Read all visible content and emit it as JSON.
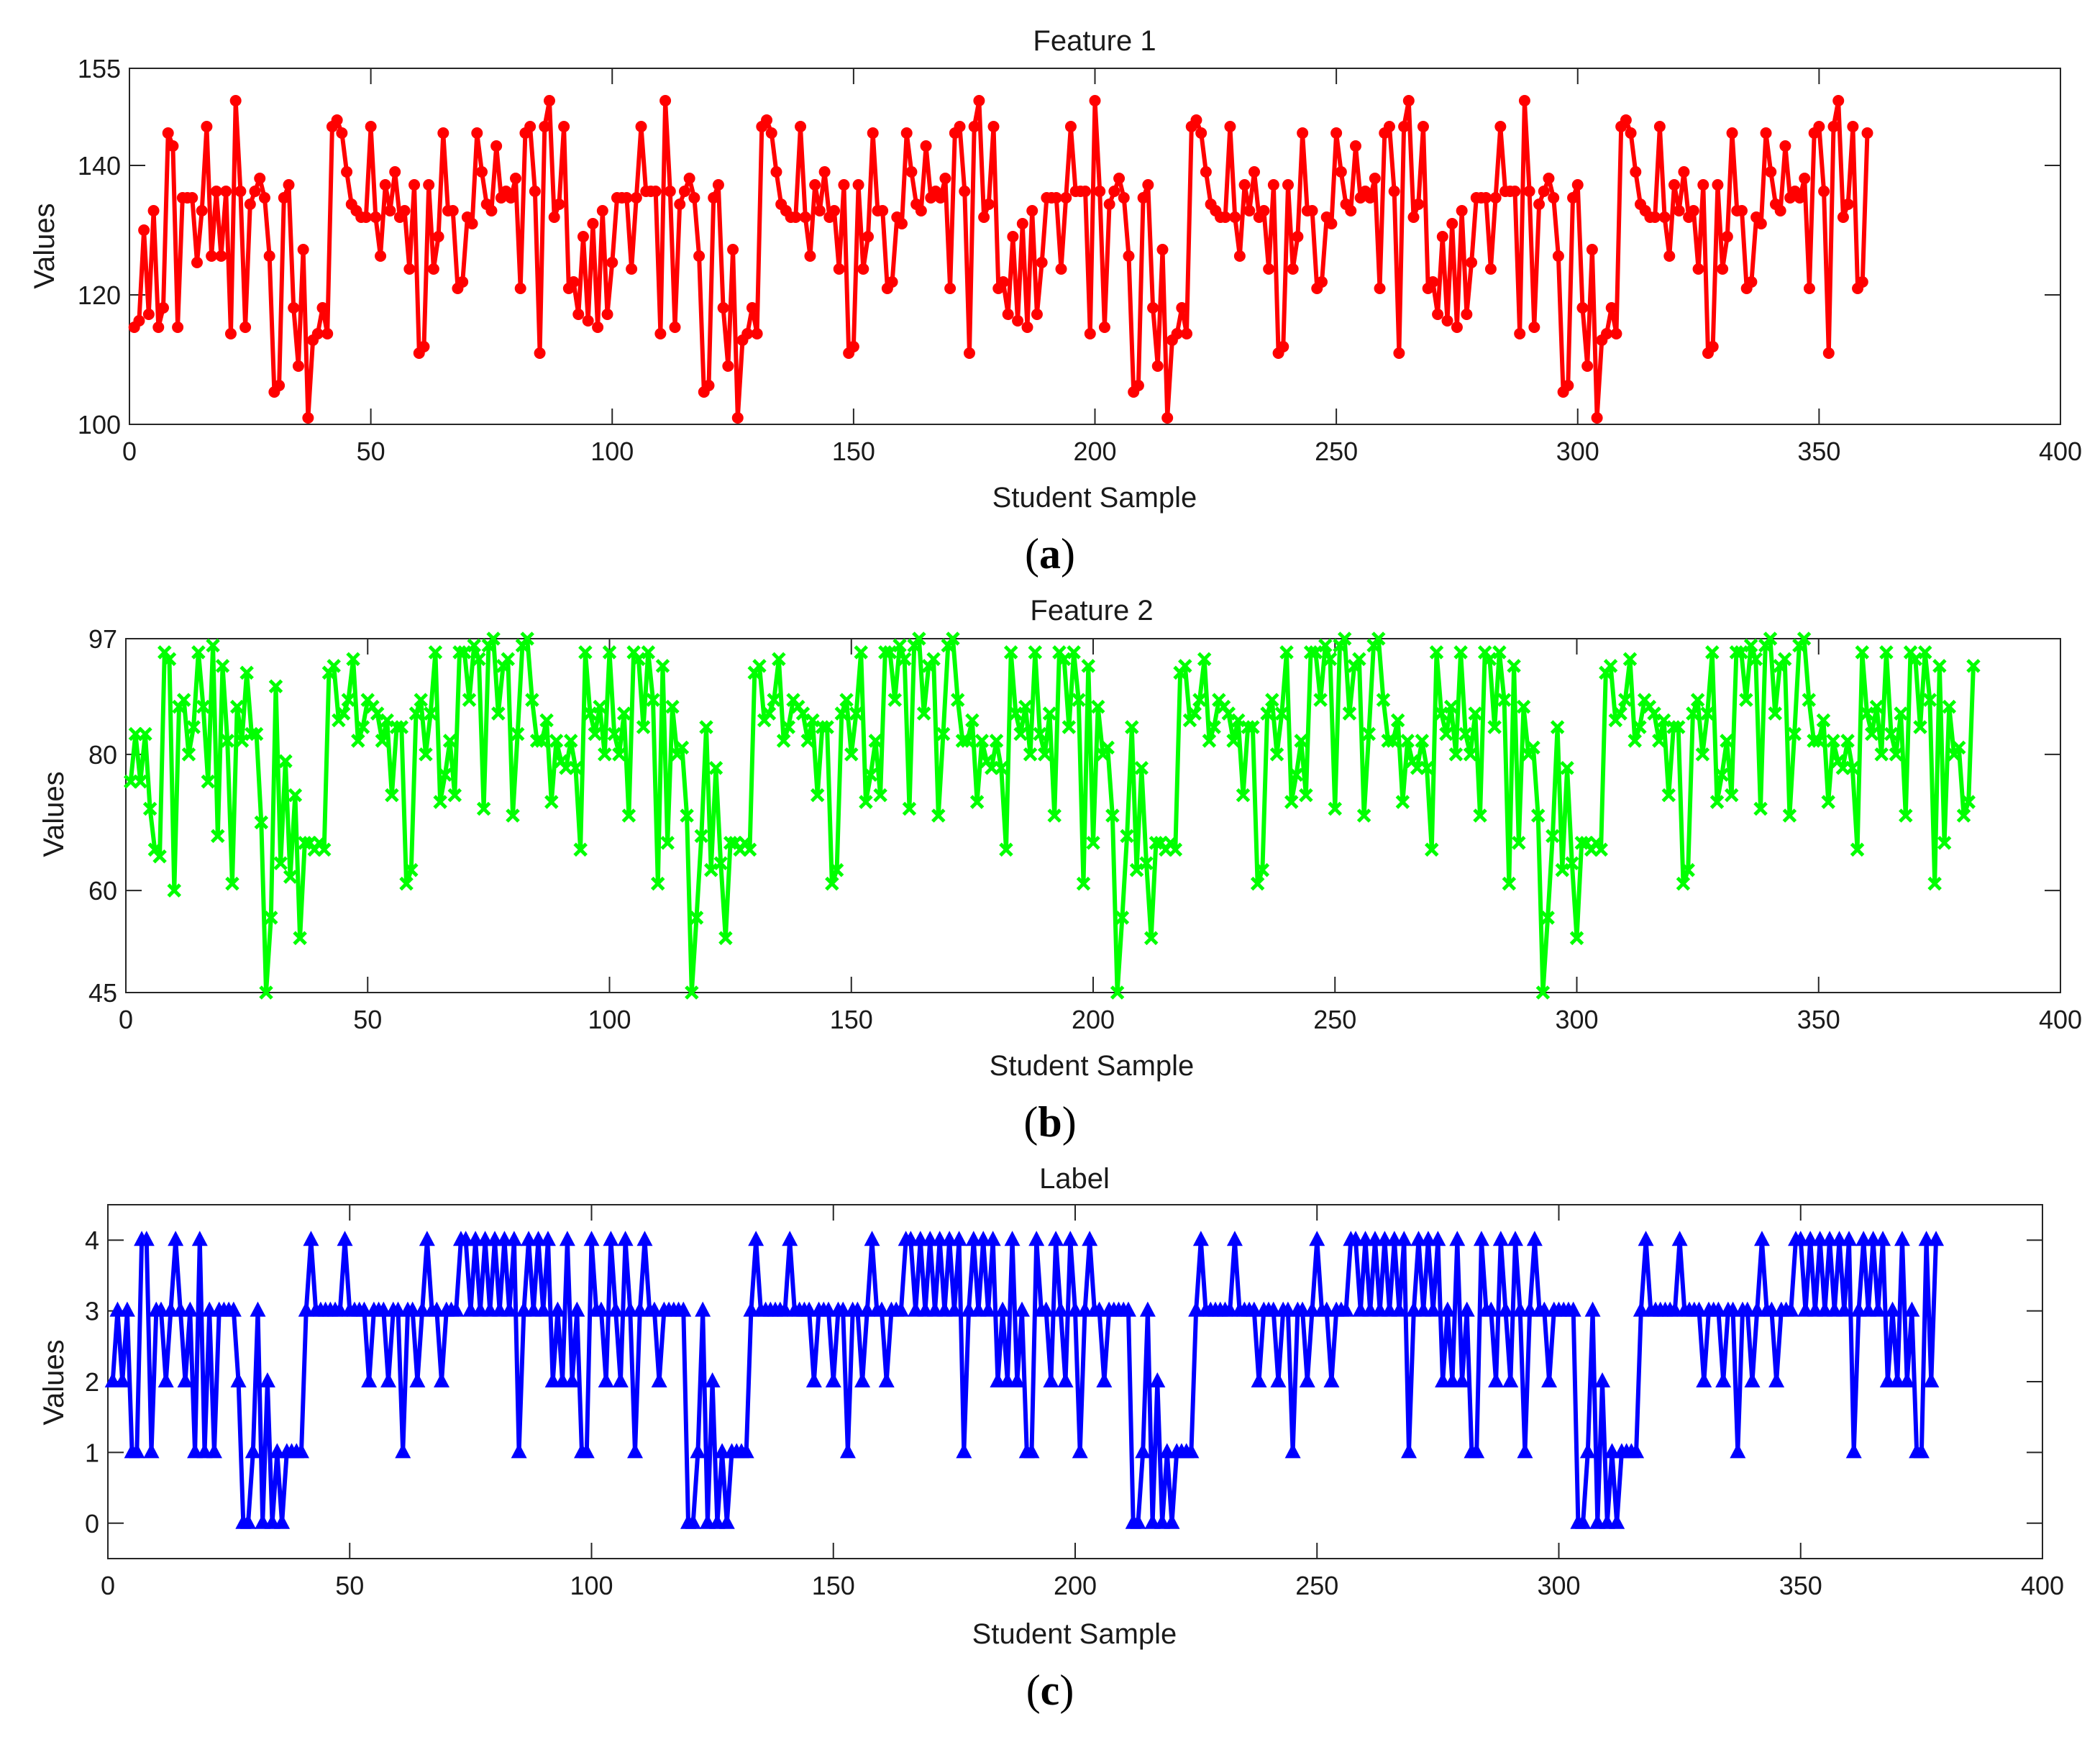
{
  "chart_data": [
    {
      "type": "line",
      "title": "Feature 1",
      "xlabel": "Student Sample",
      "ylabel": "Values",
      "caption_letter": "a",
      "xlim": [
        0,
        400
      ],
      "ylim": [
        100,
        155
      ],
      "xticks": [
        0,
        50,
        100,
        150,
        200,
        250,
        300,
        350,
        400
      ],
      "yticks": [
        100,
        120,
        140,
        155
      ],
      "marker": "circle",
      "color": "#ff0000",
      "series": [
        {
          "name": "Feature 1",
          "x_start": 1,
          "values": [
            115,
            116,
            130,
            117,
            133,
            115,
            118,
            145,
            143,
            115,
            135,
            135,
            135,
            125,
            133,
            146,
            126,
            136,
            126,
            136,
            114,
            150,
            136,
            115,
            134,
            136,
            138,
            135,
            126,
            105,
            106,
            135,
            137,
            118,
            109,
            127,
            101,
            113,
            114,
            118,
            114,
            146,
            147,
            145,
            139,
            134,
            133,
            132,
            132,
            146,
            132,
            126,
            137,
            133,
            139,
            132,
            133,
            124,
            137,
            111,
            112,
            137,
            124,
            129,
            145,
            133,
            133,
            121,
            122,
            132,
            131,
            145,
            139,
            134,
            133,
            143,
            135,
            136,
            135,
            138,
            121,
            145,
            146,
            136,
            111,
            146,
            150,
            132,
            134,
            146,
            121,
            122,
            117,
            129,
            116,
            131,
            115,
            133,
            117,
            125,
            135,
            135,
            135,
            124,
            135,
            146,
            136,
            136,
            136,
            114,
            150,
            136,
            115,
            134,
            136,
            138,
            135,
            126,
            105,
            106,
            135,
            137,
            118,
            109,
            127,
            101,
            113,
            114,
            118,
            114,
            146,
            147,
            145,
            139,
            134,
            133,
            132,
            132,
            146,
            132,
            126,
            137,
            133,
            139,
            132,
            133,
            124,
            137,
            111,
            112,
            137,
            124,
            129,
            145,
            133,
            133,
            121,
            122,
            132,
            131,
            145,
            139,
            134,
            133,
            143,
            135,
            136,
            135,
            138,
            121,
            145,
            146,
            136,
            111,
            146,
            150,
            132,
            134,
            146,
            121,
            122,
            117,
            129,
            116,
            131,
            115,
            133,
            117,
            125,
            135,
            135,
            135,
            124,
            135,
            146,
            136,
            136,
            136,
            114,
            150,
            136,
            115,
            134,
            136,
            138,
            135,
            126,
            105,
            106,
            135,
            137,
            118,
            109,
            127,
            101,
            113,
            114,
            118,
            114,
            146,
            147,
            145,
            139,
            134,
            133,
            132,
            132,
            146,
            132,
            126,
            137,
            133,
            139,
            132,
            133,
            124,
            137,
            111,
            112,
            137,
            124,
            129,
            145,
            133,
            133,
            121,
            122,
            132,
            131,
            145,
            139,
            134,
            133,
            143,
            135,
            136,
            135,
            138,
            121,
            145,
            146,
            136,
            111,
            146,
            150,
            132,
            134,
            146,
            121,
            122,
            117,
            129,
            116,
            131,
            115,
            133,
            117,
            125,
            135,
            135,
            135,
            124,
            135,
            146,
            136,
            136,
            136,
            114,
            150,
            136,
            115,
            134,
            136,
            138,
            135,
            126,
            105,
            106,
            135,
            137,
            118,
            109,
            127,
            101,
            113,
            114,
            118,
            114,
            146,
            147,
            145,
            139,
            134,
            133,
            132,
            132,
            146,
            132,
            126,
            137,
            133,
            139,
            132,
            133,
            124,
            137,
            111,
            112,
            137,
            124,
            129,
            145,
            133,
            133,
            121,
            122,
            132,
            131,
            145,
            139,
            134,
            133,
            143,
            135,
            136,
            135,
            138,
            121,
            145,
            146,
            136,
            111,
            146,
            150,
            132,
            134,
            146,
            121,
            122,
            145
          ]
        }
      ]
    },
    {
      "type": "line",
      "title": "Feature 2",
      "xlabel": "Student Sample",
      "ylabel": "Values",
      "caption_letter": "b",
      "xlim": [
        0,
        400
      ],
      "ylim": [
        45,
        97
      ],
      "xticks": [
        0,
        50,
        100,
        150,
        200,
        250,
        300,
        350,
        400
      ],
      "yticks": [
        45,
        60,
        80,
        97
      ],
      "marker": "x",
      "color": "#00ff00",
      "series": [
        {
          "name": "Feature 2",
          "x_start": 1,
          "values": [
            76,
            83,
            76,
            83,
            72,
            66,
            65,
            95,
            94,
            60,
            87,
            88,
            80,
            84,
            95,
            87,
            76,
            96,
            68,
            93,
            82,
            61,
            87,
            82,
            92,
            83,
            83,
            70,
            45,
            56,
            90,
            64,
            79,
            62,
            74,
            53,
            67,
            67,
            66,
            67,
            66,
            92,
            93,
            85,
            86,
            88,
            94,
            82,
            84,
            88,
            87,
            86,
            82,
            85,
            74,
            84,
            84,
            61,
            63,
            86,
            88,
            80,
            86,
            95,
            73,
            77,
            82,
            74,
            95,
            95,
            88,
            96,
            94,
            72,
            96,
            97,
            86,
            93,
            94,
            71,
            83,
            96,
            97,
            88,
            82,
            82,
            85,
            73,
            82,
            79,
            78,
            82,
            78,
            66,
            95,
            86,
            83,
            87,
            80,
            95,
            83,
            80,
            86,
            71,
            95,
            94,
            84,
            95,
            88,
            61,
            93,
            67,
            87,
            80,
            81,
            71,
            45,
            56,
            68,
            84,
            63,
            78,
            64,
            53,
            67,
            67,
            66,
            67,
            66,
            92,
            93,
            85,
            86,
            88,
            94,
            82,
            84,
            88,
            87,
            86,
            82,
            85,
            74,
            84,
            84,
            61,
            63,
            86,
            88,
            80,
            86,
            95,
            73,
            77,
            82,
            74,
            95,
            95,
            88,
            96,
            94,
            72,
            96,
            97,
            86,
            93,
            94,
            71,
            83,
            96,
            97,
            88,
            82,
            82,
            85,
            73,
            82,
            79,
            78,
            82,
            78,
            66,
            95,
            86,
            83,
            87,
            80,
            95,
            83,
            80,
            86,
            71,
            95,
            94,
            84,
            95,
            88,
            61,
            93,
            67,
            87,
            80,
            81,
            71,
            45,
            56,
            68,
            84,
            63,
            78,
            64,
            53,
            67,
            67,
            66,
            67,
            66,
            92,
            93,
            85,
            86,
            88,
            94,
            82,
            84,
            88,
            87,
            86,
            82,
            85,
            74,
            84,
            84,
            61,
            63,
            86,
            88,
            80,
            86,
            95,
            73,
            77,
            82,
            74,
            95,
            95,
            88,
            96,
            94,
            72,
            96,
            97,
            86,
            93,
            94,
            71,
            83,
            96,
            97,
            88,
            82,
            82,
            85,
            73,
            82,
            79,
            78,
            82,
            78,
            66,
            95,
            86,
            83,
            87,
            80,
            95,
            83,
            80,
            86,
            71,
            95,
            94,
            84,
            95,
            88,
            61,
            93,
            67,
            87,
            80,
            81,
            71,
            45,
            56,
            68,
            84,
            63,
            78,
            64,
            53,
            67,
            67,
            66,
            67,
            66,
            92,
            93,
            85,
            86,
            88,
            94,
            82,
            84,
            88,
            87,
            86,
            82,
            85,
            74,
            84,
            84,
            61,
            63,
            86,
            88,
            80,
            86,
            95,
            73,
            77,
            82,
            74,
            95,
            95,
            88,
            96,
            94,
            72,
            96,
            97,
            86,
            93,
            94,
            71,
            83,
            96,
            97,
            88,
            82,
            82,
            85,
            73,
            82,
            79,
            78,
            82,
            78,
            66,
            95,
            86,
            83,
            87,
            80,
            95,
            83,
            80,
            86,
            71,
            95,
            94,
            84,
            95,
            88,
            61,
            93,
            67,
            87,
            80,
            81,
            71,
            73,
            93
          ]
        }
      ]
    },
    {
      "type": "line",
      "title": "Label",
      "xlabel": "Student Sample",
      "ylabel": "Values",
      "caption_letter": "c",
      "xlim": [
        0,
        400
      ],
      "ylim": [
        -0.5,
        4.5
      ],
      "xticks": [
        0,
        50,
        100,
        150,
        200,
        250,
        300,
        350,
        400
      ],
      "yticks": [
        0,
        1,
        2,
        3,
        4
      ],
      "marker": "triangle",
      "color": "#0000ff",
      "series": [
        {
          "name": "Label",
          "x_start": 1,
          "values": [
            2,
            3,
            2,
            3,
            1,
            1,
            4,
            4,
            1,
            3,
            3,
            2,
            3,
            4,
            3,
            2,
            3,
            1,
            4,
            1,
            3,
            1,
            3,
            3,
            3,
            3,
            2,
            0,
            0,
            1,
            3,
            0,
            2,
            0,
            1,
            0,
            1,
            1,
            1,
            1,
            3,
            4,
            3,
            3,
            3,
            3,
            3,
            3,
            4,
            3,
            3,
            3,
            3,
            2,
            3,
            3,
            3,
            2,
            3,
            3,
            1,
            3,
            3,
            2,
            3,
            4,
            3,
            3,
            2,
            3,
            3,
            3,
            4,
            4,
            3,
            4,
            3,
            4,
            3,
            4,
            3,
            4,
            3,
            4,
            1,
            3,
            4,
            3,
            4,
            3,
            4,
            2,
            3,
            2,
            4,
            2,
            3,
            1,
            1,
            4,
            3,
            3,
            2,
            4,
            3,
            2,
            4,
            3,
            1,
            3,
            4,
            3,
            3,
            2,
            3,
            3,
            3,
            3,
            3,
            0,
            0,
            1,
            3,
            0,
            2,
            0,
            1,
            0,
            1,
            1,
            1,
            1,
            3,
            4,
            3,
            3,
            3,
            3,
            3,
            3,
            4,
            3,
            3,
            3,
            3,
            2,
            3,
            3,
            3,
            2,
            3,
            3,
            1,
            3,
            3,
            2,
            3,
            4,
            3,
            3,
            2,
            3,
            3,
            3,
            4,
            4,
            3,
            4,
            3,
            4,
            3,
            4,
            3,
            4,
            3,
            4,
            1,
            3,
            4,
            3,
            4,
            3,
            4,
            2,
            3,
            2,
            4,
            2,
            3,
            1,
            1,
            4,
            3,
            3,
            2,
            4,
            3,
            2,
            4,
            3,
            1,
            3,
            4,
            3,
            3,
            2,
            3,
            3,
            3,
            3,
            3,
            0,
            0,
            1,
            3,
            0,
            2,
            0,
            1,
            0,
            1,
            1,
            1,
            1,
            3,
            4,
            3,
            3,
            3,
            3,
            3,
            3,
            4,
            3,
            3,
            3,
            3,
            2,
            3,
            3,
            3,
            2,
            3,
            3,
            1,
            3,
            3,
            2,
            3,
            4,
            3,
            3,
            2,
            3,
            3,
            3,
            4,
            4,
            3,
            4,
            3,
            4,
            3,
            4,
            3,
            4,
            3,
            4,
            1,
            3,
            4,
            3,
            4,
            3,
            4,
            2,
            3,
            2,
            4,
            2,
            3,
            1,
            1,
            4,
            3,
            3,
            2,
            4,
            3,
            2,
            4,
            3,
            1,
            3,
            4,
            3,
            3,
            2,
            3,
            3,
            3,
            3,
            3,
            0,
            0,
            1,
            3,
            0,
            2,
            0,
            1,
            0,
            1,
            1,
            1,
            1,
            3,
            4,
            3,
            3,
            3,
            3,
            3,
            3,
            4,
            3,
            3,
            3,
            3,
            2,
            3,
            3,
            3,
            2,
            3,
            3,
            1,
            3,
            3,
            2,
            3,
            4,
            3,
            3,
            2,
            3,
            3,
            3,
            4,
            4,
            3,
            4,
            3,
            4,
            3,
            4,
            3,
            4,
            3,
            4,
            1,
            3,
            4,
            3,
            4,
            3,
            4,
            2,
            3,
            2,
            4,
            2,
            3,
            1,
            1,
            4,
            2,
            4
          ]
        }
      ]
    }
  ]
}
